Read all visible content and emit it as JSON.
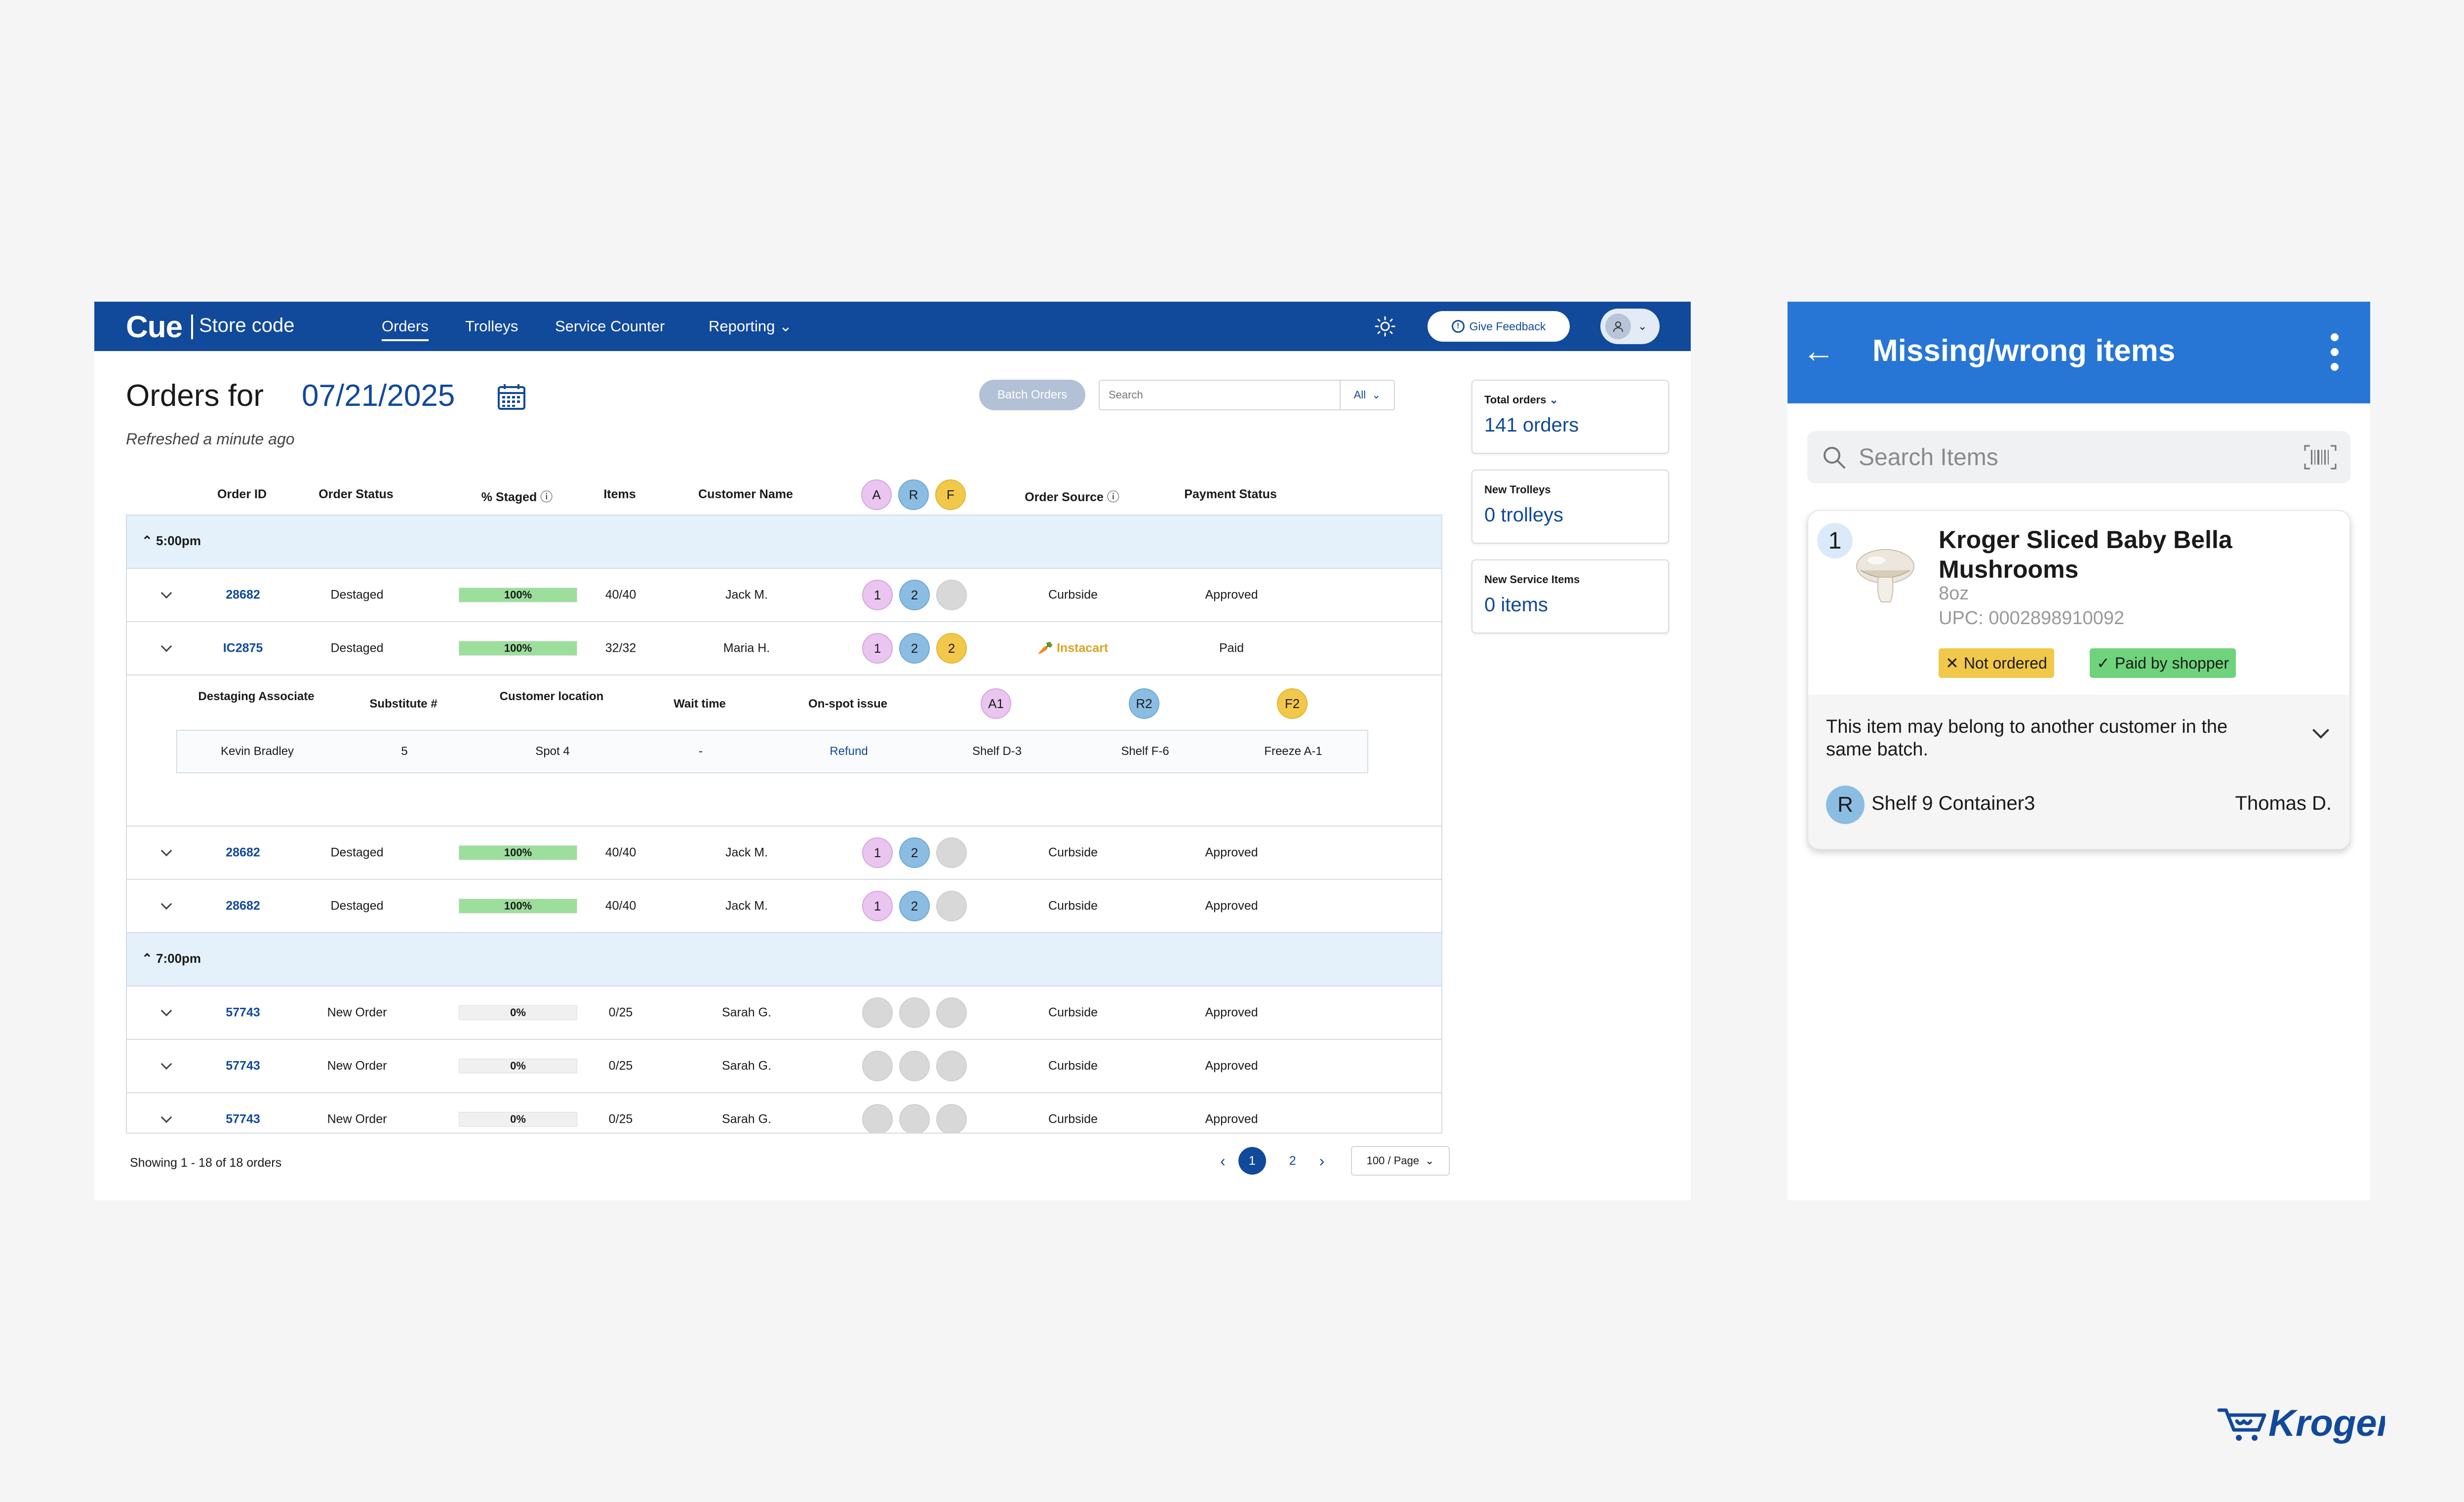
{
  "desktop": {
    "brand": "Cue",
    "store_code": "Store code",
    "nav": [
      "Orders",
      "Trolleys",
      "Service Counter",
      "Reporting"
    ],
    "feedback": "Give Feedback",
    "title": "Orders for",
    "date": "07/21/2025",
    "refreshed": "Refreshed a minute ago",
    "batch_orders": "Batch Orders",
    "search_placeholder": "Search",
    "filter": "All",
    "columns": {
      "order_id": "Order ID",
      "order_status": "Order Status",
      "staged": "% Staged",
      "items": "Items",
      "customer": "Customer Name",
      "source": "Order Source",
      "payment": "Payment Status",
      "circles": [
        "A",
        "R",
        "F"
      ]
    },
    "groups": [
      {
        "label": "5:00pm"
      },
      {
        "label": "7:00pm"
      }
    ],
    "rows": [
      {
        "id": "28682",
        "status": "Destaged",
        "staged": "100%",
        "staged_fraction": 1.0,
        "items": "40/40",
        "customer": "Jack M.",
        "b1": "1",
        "b2": "2",
        "b3": "",
        "source": "Curbside",
        "payment": "Approved"
      },
      {
        "id": "IC2875",
        "status": "Destaged",
        "staged": "100%",
        "staged_fraction": 1.0,
        "items": "32/32",
        "customer": "Maria H.",
        "b1": "1",
        "b2": "2",
        "b3": "2",
        "source": "Instacart",
        "payment": "Paid"
      },
      {
        "id": "28682",
        "status": "Destaged",
        "staged": "100%",
        "staged_fraction": 1.0,
        "items": "40/40",
        "customer": "Jack M.",
        "b1": "1",
        "b2": "2",
        "b3": "",
        "source": "Curbside",
        "payment": "Approved"
      },
      {
        "id": "28682",
        "status": "Destaged",
        "staged": "100%",
        "staged_fraction": 1.0,
        "items": "40/40",
        "customer": "Jack M.",
        "b1": "1",
        "b2": "2",
        "b3": "",
        "source": "Curbside",
        "payment": "Approved"
      },
      {
        "id": "57743",
        "status": "New Order",
        "staged": "0%",
        "staged_fraction": 0.0,
        "items": "0/25",
        "customer": "Sarah G.",
        "b1": "",
        "b2": "",
        "b3": "",
        "source": "Curbside",
        "payment": "Approved"
      },
      {
        "id": "57743",
        "status": "New Order",
        "staged": "0%",
        "staged_fraction": 0.0,
        "items": "0/25",
        "customer": "Sarah G.",
        "b1": "",
        "b2": "",
        "b3": "",
        "source": "Curbside",
        "payment": "Approved"
      },
      {
        "id": "57743",
        "status": "New Order",
        "staged": "0%",
        "staged_fraction": 0.0,
        "items": "0/25",
        "customer": "Sarah G.",
        "b1": "",
        "b2": "",
        "b3": "",
        "source": "Curbside",
        "payment": "Approved"
      }
    ],
    "detail": {
      "headers": [
        "Destaging Associate",
        "Substitute #",
        "Customer location",
        "Wait time",
        "On-spot issue",
        "A1",
        "R2",
        "F2"
      ],
      "values": [
        "Kevin Bradley",
        "5",
        "Spot 4",
        "-",
        "Refund",
        "Shelf D-3",
        "Shelf F-6",
        "Freeze A-1"
      ]
    },
    "showing": "Showing 1 - 18 of 18 orders",
    "pages": [
      "1",
      "2"
    ],
    "per_page": "100 / Page",
    "cards": [
      {
        "label": "Total orders",
        "value": "141 orders"
      },
      {
        "label": "New Trolleys",
        "value": "0 trolleys"
      },
      {
        "label": "New Service Items",
        "value": "0 items"
      }
    ]
  },
  "mobile": {
    "title": "Missing/wrong items",
    "search_placeholder": "Search Items",
    "item": {
      "number": "1",
      "name": "Kroger Sliced Baby Bella Mushrooms",
      "size": "8oz",
      "upc": "UPC: 0002898910092",
      "tag_not_ordered": "Not ordered",
      "tag_paid": "Paid by shopper",
      "note": "This item may belong to another customer in the same batch.",
      "badge": "R",
      "location": "Shelf 9 Container3",
      "shopper": "Thomas D."
    }
  },
  "colors": {
    "nav_blue": "#11499b",
    "mobile_blue": "#2776d6",
    "group_bg": "#e4f1fb",
    "staged_fill": "#9cde9c",
    "badge_a": "#e9c5f0",
    "badge_r": "#8bbde3",
    "badge_f": "#f2c84b",
    "instacart": "#d9a426"
  }
}
